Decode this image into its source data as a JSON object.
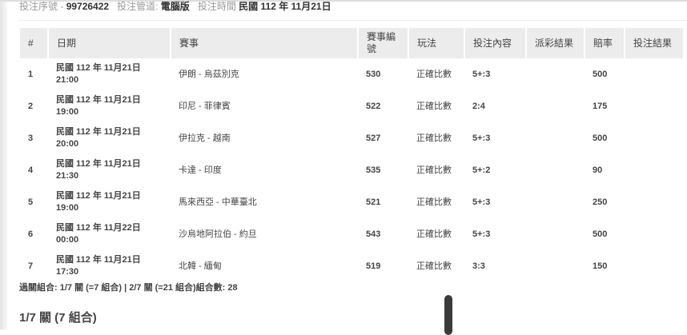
{
  "info": {
    "serial_label": "投注序號",
    "serial": "99726422",
    "channel_label": "投注管道:",
    "channel": "電腦版",
    "time_label": "投注時間",
    "time": "民國 112 年 11月21日"
  },
  "table": {
    "headers": [
      "#",
      "日期",
      "賽事",
      "賽事編號",
      "玩法",
      "投注內容",
      "派彩結果",
      "賠率",
      "投注結果"
    ],
    "rows": [
      {
        "no": "1",
        "date": "民國 112 年 11月21日",
        "time": "21:00",
        "match": "伊朗 - 烏茲別克",
        "code": "530",
        "play": "正確比數",
        "bet": "5+:3",
        "payout": "",
        "odds": "500",
        "result": ""
      },
      {
        "no": "2",
        "date": "民國 112 年 11月21日",
        "time": "19:00",
        "match": "印尼 - 菲律賓",
        "code": "522",
        "play": "正確比數",
        "bet": "2:4",
        "payout": "",
        "odds": "175",
        "result": ""
      },
      {
        "no": "3",
        "date": "民國 112 年 11月21日",
        "time": "20:00",
        "match": "伊拉克 - 越南",
        "code": "527",
        "play": "正確比數",
        "bet": "5+:3",
        "payout": "",
        "odds": "500",
        "result": ""
      },
      {
        "no": "4",
        "date": "民國 112 年 11月21日",
        "time": "21:30",
        "match": "卡達 - 印度",
        "code": "535",
        "play": "正確比數",
        "bet": "5+:2",
        "payout": "",
        "odds": "90",
        "result": ""
      },
      {
        "no": "5",
        "date": "民國 112 年 11月21日",
        "time": "19:00",
        "match": "馬來西亞 - 中華臺北",
        "code": "521",
        "play": "正確比數",
        "bet": "5+:3",
        "payout": "",
        "odds": "250",
        "result": ""
      },
      {
        "no": "6",
        "date": "民國 112 年 11月22日",
        "time": "00:00",
        "match": "沙烏地阿拉伯 - 約旦",
        "code": "543",
        "play": "正確比數",
        "bet": "5+:3",
        "payout": "",
        "odds": "500",
        "result": ""
      },
      {
        "no": "7",
        "date": "民國 112 年 11月21日",
        "time": "17:30",
        "match": "北韓 - 緬甸",
        "code": "519",
        "play": "正確比數",
        "bet": "3:3",
        "payout": "",
        "odds": "150",
        "result": ""
      }
    ]
  },
  "summary": "過關組合: 1/7 關 (=7 組合) | 2/7 關 (=21 組合)組合數: 28",
  "section_title": "1/7 關 (7 組合)"
}
